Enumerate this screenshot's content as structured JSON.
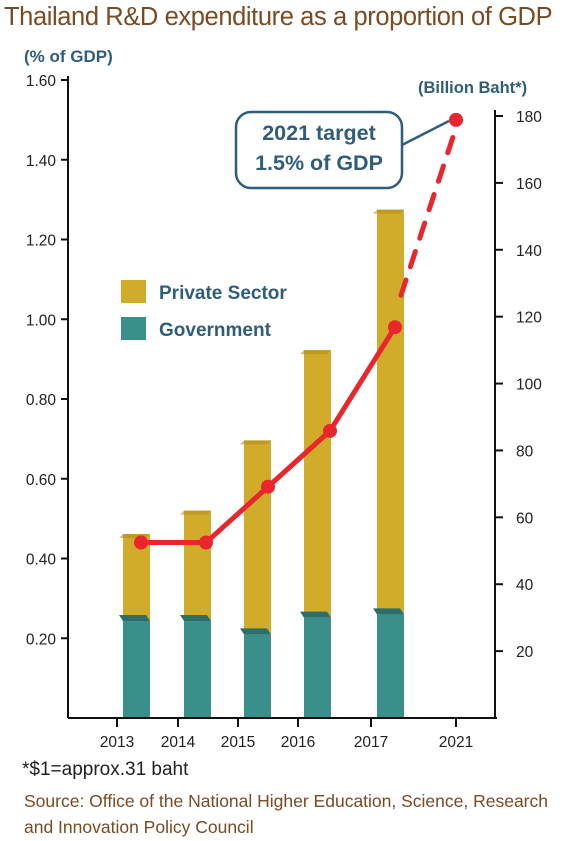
{
  "title": "Thailand R&D expenditure as a proportion of GDP",
  "footnote": "*$1=approx.31 baht",
  "source": "Source: Office of the National Higher Education, Science, Research and Innovation Policy Council",
  "colors": {
    "private": "#d1ab2a",
    "private_top": "#b08a1c",
    "government": "#3a8f8b",
    "government_top": "#2c6e6b",
    "line": "#e8262b",
    "axis_text": "#2f5d7a",
    "callout_border": "#2f5d7a"
  },
  "chart_data": {
    "type": "bar",
    "categories": [
      "2013",
      "2014",
      "2015",
      "2016",
      "2017"
    ],
    "x_tick_labels": [
      "2013",
      "2014",
      "2015",
      "2016",
      "2017",
      "2021"
    ],
    "left_axis": {
      "label": "(% of GDP)",
      "ylim": [
        0,
        1.6
      ],
      "ticks": [
        "0.20",
        "0.40",
        "0.60",
        "0.80",
        "1.00",
        "1.20",
        "1.40",
        "1.60"
      ],
      "tick_values": [
        0.2,
        0.4,
        0.6,
        0.8,
        1.0,
        1.2,
        1.4,
        1.6
      ]
    },
    "right_axis": {
      "label": "(Billion Baht*)",
      "ylim": [
        0,
        180
      ],
      "ticks": [
        "20",
        "40",
        "60",
        "80",
        "100",
        "120",
        "140",
        "160",
        "180"
      ],
      "tick_values": [
        20,
        40,
        60,
        80,
        100,
        120,
        140,
        160,
        180
      ]
    },
    "series": [
      {
        "name": "Government",
        "type": "bar",
        "axis": "right",
        "values": [
          29,
          29,
          25,
          30,
          31
        ]
      },
      {
        "name": "Private Sector",
        "type": "bar",
        "axis": "right",
        "values": [
          26,
          33,
          58,
          80,
          121
        ]
      },
      {
        "type": "line",
        "axis": "left",
        "x": [
          "2013",
          "2014",
          "2015",
          "2016",
          "2017",
          "2021"
        ],
        "values": [
          0.44,
          0.44,
          0.58,
          0.72,
          0.98,
          1.5
        ],
        "projected_from": "2017"
      }
    ],
    "legend": [
      {
        "name": "Private Sector"
      },
      {
        "name": "Government"
      }
    ],
    "callout": {
      "line1": "2021 target",
      "line2": "1.5% of GDP"
    }
  }
}
